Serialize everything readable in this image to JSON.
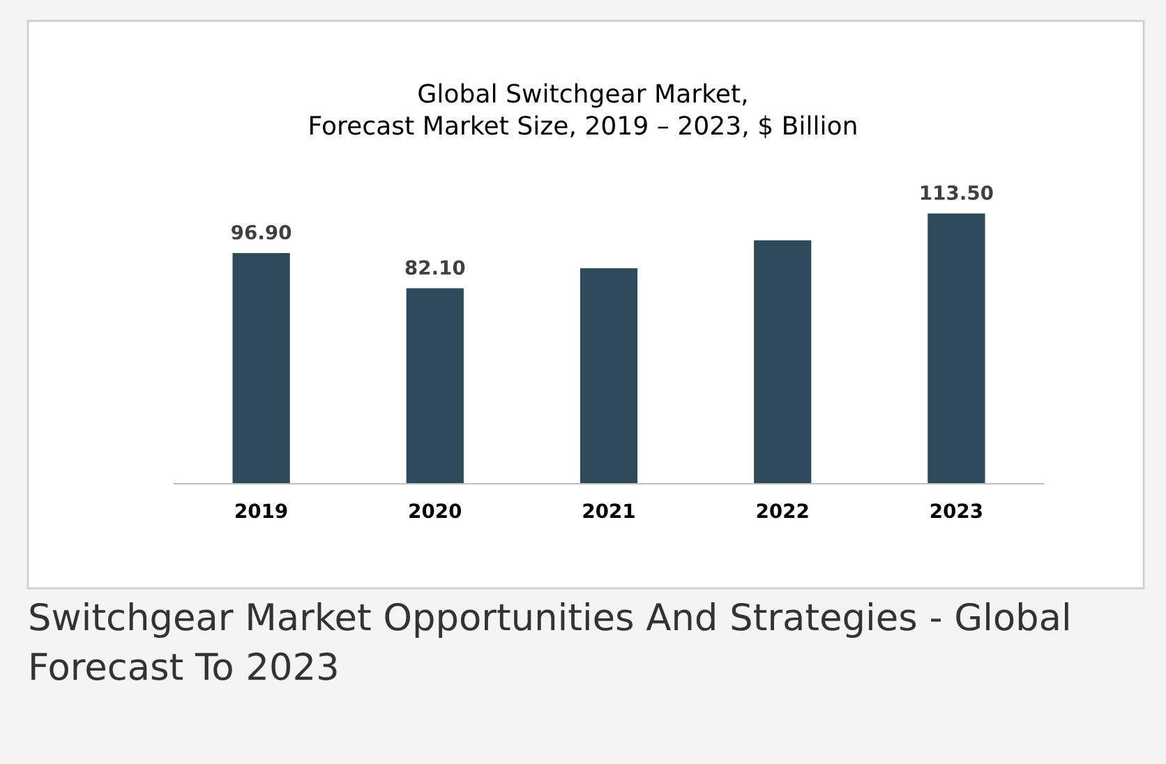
{
  "chart_data": {
    "type": "bar",
    "title": "Global Switchgear Market,\nForecast Market Size, 2019 – 2023, $ Billion",
    "categories": [
      "2019",
      "2020",
      "2021",
      "2022",
      "2023"
    ],
    "values": [
      96.9,
      82.1,
      90.5,
      102.2,
      113.5
    ],
    "value_labels": [
      "96.90",
      "82.10",
      null,
      null,
      "113.50"
    ],
    "color": "#2e4a5a",
    "tick_labels": "x",
    "grid": false,
    "legend": false,
    "annotations": [
      "Switchgear Market Opportunities And Strategies - Global Forecast To 2023"
    ]
  }
}
